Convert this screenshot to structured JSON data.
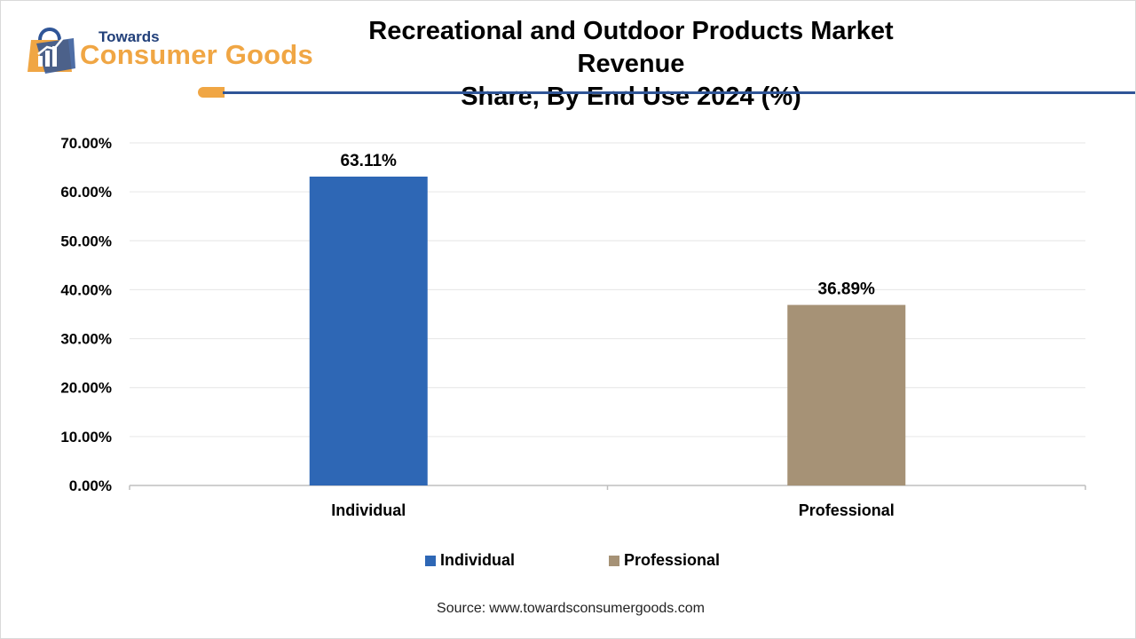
{
  "brand": {
    "name_small": "Towards",
    "name_big": "Consumer Goods",
    "primary_color": "#2f5597",
    "accent_color": "#f0a644"
  },
  "source": {
    "label": "Source:",
    "url": "www.towardsconsumergoods.com"
  },
  "chart_data": {
    "type": "bar",
    "title": "Recreational and Outdoor Products Market Revenue Share, By End Use 2024 (%)",
    "title_lines": [
      "Recreational and Outdoor Products Market Revenue",
      "Share, By End Use 2024 (%)"
    ],
    "categories": [
      "Individual",
      "Professional"
    ],
    "values": [
      63.11,
      36.89
    ],
    "value_labels": [
      "63.11%",
      "36.89%"
    ],
    "colors": [
      "#2e67b5",
      "#a69276"
    ],
    "ylim": [
      0,
      70
    ],
    "yticks": [
      0,
      10,
      20,
      30,
      40,
      50,
      60,
      70
    ],
    "ytick_labels": [
      "0.00%",
      "10.00%",
      "20.00%",
      "30.00%",
      "40.00%",
      "50.00%",
      "60.00%",
      "70.00%"
    ],
    "xlabel": "",
    "ylabel": "",
    "grid": true,
    "legend": {
      "placement": "bottom",
      "entries": [
        {
          "label": "Individual",
          "color": "#2e67b5"
        },
        {
          "label": "Professional",
          "color": "#a69276"
        }
      ]
    }
  }
}
